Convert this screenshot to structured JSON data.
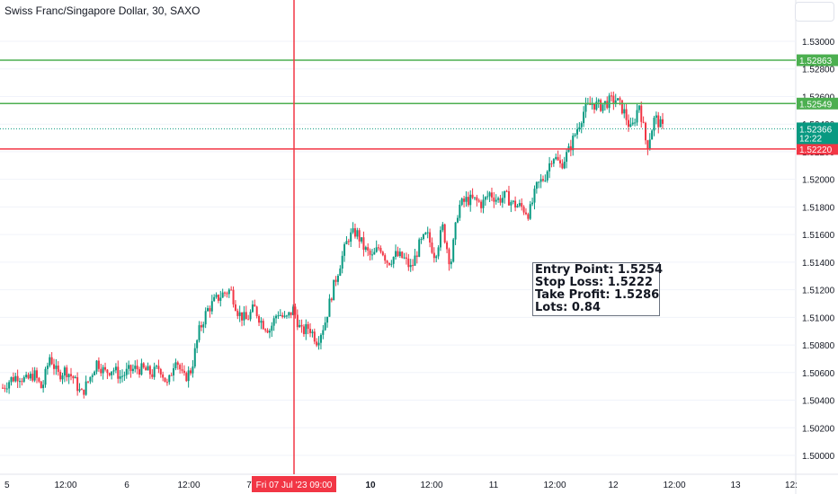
{
  "header": {
    "title": "Swiss Franc/Singapore Dollar, 30, SAXO"
  },
  "colors": {
    "up": "#089981",
    "down": "#f23645",
    "take_profit": "#4caf50",
    "stop_loss": "#f23645",
    "entry": "#4caf50",
    "crosshair": "#f23645",
    "grid": "#f0f3fa"
  },
  "info_box": {
    "entry": "Entry Point: 1.5254",
    "stop": "Stop Loss: 1.5222",
    "take": "Take Profit: 1.5286",
    "lots": "Lots: 0.84"
  },
  "chart_data": {
    "type": "candlestick",
    "title": "Swiss Franc/Singapore Dollar, 30, SAXO",
    "y_ticks": [
      "1.53000",
      "1.52800",
      "1.52600",
      "1.52400",
      "1.52200",
      "1.52000",
      "1.51800",
      "1.51600",
      "1.51400",
      "1.51200",
      "1.51000",
      "1.50800",
      "1.50600",
      "1.50400",
      "1.50200",
      "1.50000"
    ],
    "ylim": [
      1.4993,
      1.5322
    ],
    "x_ticks": [
      "5",
      "12:00",
      "6",
      "12:00",
      "7",
      "10",
      "12:00",
      "11",
      "12:00",
      "12",
      "12:00",
      "13",
      "12:"
    ],
    "price_labels": {
      "take_profit": "1.52863",
      "entry": "1.52549",
      "current": "1.52366",
      "countdown": "12:22",
      "stop_loss": "1.52220"
    },
    "horizontal_lines": {
      "take_profit": 1.52863,
      "entry": 1.52549,
      "stop_loss": 1.5222,
      "current": 1.52366
    },
    "crosshair_label": "Fri 07 Jul '23  09:00",
    "close_path": [
      1.5049,
      1.5055,
      1.5058,
      1.5054,
      1.5059,
      1.5048,
      1.5072,
      1.5058,
      1.5062,
      1.5056,
      1.5044,
      1.5055,
      1.5068,
      1.506,
      1.5063,
      1.5057,
      1.5061,
      1.5063,
      1.5062,
      1.5059,
      1.5064,
      1.505,
      1.5072,
      1.5055,
      1.5062,
      1.509,
      1.5105,
      1.5112,
      1.5117,
      1.512,
      1.5103,
      1.5098,
      1.5107,
      1.5096,
      1.5091,
      1.5104,
      1.5098,
      1.5106,
      1.5089,
      1.5093,
      1.5083,
      1.5096,
      1.512,
      1.514,
      1.5158,
      1.5162,
      1.515,
      1.5143,
      1.5152,
      1.514,
      1.5145,
      1.5143,
      1.5135,
      1.5152,
      1.516,
      1.5145,
      1.5165,
      1.5138,
      1.518,
      1.5185,
      1.5185,
      1.5182,
      1.519,
      1.5185,
      1.5188,
      1.5182,
      1.518,
      1.5175,
      1.5195,
      1.5202,
      1.5218,
      1.521,
      1.522,
      1.5235,
      1.525,
      1.5255,
      1.5253,
      1.5256,
      1.5258,
      1.525,
      1.5235,
      1.5255,
      1.5223,
      1.5245,
      1.5237
    ]
  }
}
